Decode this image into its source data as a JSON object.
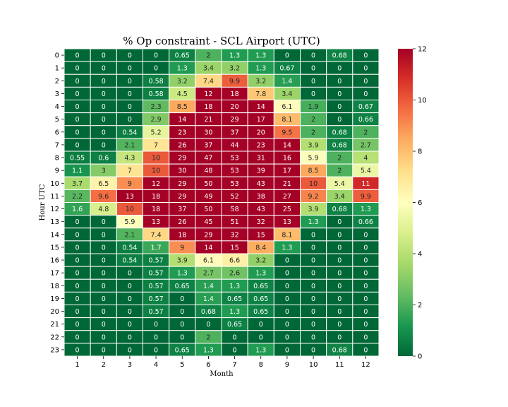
{
  "chart_data": {
    "type": "heatmap",
    "title": "% Op constraint - SCL Airport (UTC)",
    "xlabel": "Month",
    "ylabel": "Hour UTC",
    "x_categories": [
      "1",
      "2",
      "3",
      "4",
      "5",
      "6",
      "7",
      "8",
      "9",
      "10",
      "11",
      "12"
    ],
    "y_categories": [
      "0",
      "1",
      "2",
      "3",
      "4",
      "5",
      "6",
      "7",
      "8",
      "9",
      "10",
      "11",
      "12",
      "13",
      "14",
      "15",
      "16",
      "17",
      "18",
      "19",
      "20",
      "21",
      "22",
      "23"
    ],
    "values": [
      [
        0,
        0,
        0,
        0,
        0.65,
        2,
        1.3,
        1.3,
        0,
        0,
        0.68,
        0
      ],
      [
        0,
        0,
        0,
        0,
        1.3,
        3.4,
        3.2,
        1.3,
        0.67,
        0,
        0,
        0
      ],
      [
        0,
        0,
        0,
        0.58,
        3.2,
        7.4,
        9.9,
        3.2,
        1.4,
        0,
        0,
        0
      ],
      [
        0,
        0,
        0,
        0.58,
        4.5,
        12,
        18,
        7.8,
        3.4,
        0,
        0,
        0
      ],
      [
        0,
        0,
        0,
        2.3,
        8.5,
        18,
        20,
        14,
        6.1,
        1.9,
        0,
        0.67
      ],
      [
        0,
        0,
        0,
        2.9,
        14,
        21,
        29,
        17,
        8.1,
        2,
        0,
        0.66
      ],
      [
        0,
        0,
        0.54,
        5.2,
        23,
        30,
        37,
        20,
        9.5,
        2,
        0.68,
        2
      ],
      [
        0,
        0,
        2.1,
        7,
        26,
        37,
        44,
        23,
        14,
        3.9,
        0.68,
        2.7
      ],
      [
        0.55,
        0.6,
        4.3,
        10,
        29,
        47,
        53,
        31,
        16,
        5.9,
        2,
        4
      ],
      [
        1.1,
        3,
        7,
        10,
        30,
        48,
        53,
        39,
        17,
        8.5,
        2,
        5.4
      ],
      [
        3.7,
        6.5,
        9,
        12,
        29,
        50,
        53,
        43,
        21,
        10,
        5.4,
        11
      ],
      [
        2.2,
        9.6,
        13,
        18,
        29,
        49,
        52,
        38,
        27,
        9.2,
        3.4,
        9.9
      ],
      [
        1.6,
        4.8,
        10,
        18,
        37,
        50,
        58,
        43,
        25,
        3.9,
        0.68,
        1.3
      ],
      [
        0,
        0,
        5.9,
        13,
        26,
        45,
        51,
        32,
        13,
        1.3,
        0,
        0.66
      ],
      [
        0,
        0,
        2.1,
        7.4,
        18,
        29,
        32,
        15,
        8.1,
        0,
        0,
        0
      ],
      [
        0,
        0,
        0.54,
        1.7,
        9,
        14,
        15,
        8.4,
        1.3,
        0,
        0,
        0
      ],
      [
        0,
        0,
        0.54,
        0.57,
        3.9,
        6.1,
        6.6,
        3.2,
        0,
        0,
        0,
        0
      ],
      [
        0,
        0,
        0,
        0.57,
        1.3,
        2.7,
        2.6,
        1.3,
        0,
        0,
        0,
        0
      ],
      [
        0,
        0,
        0,
        0.57,
        0.65,
        1.4,
        1.3,
        0.65,
        0,
        0,
        0,
        0
      ],
      [
        0,
        0,
        0,
        0.57,
        0,
        1.4,
        0.65,
        0.65,
        0,
        0,
        0,
        0
      ],
      [
        0,
        0,
        0,
        0.57,
        0,
        0.68,
        1.3,
        0.65,
        0,
        0,
        0,
        0
      ],
      [
        0,
        0,
        0,
        0,
        0,
        0,
        0.65,
        0,
        0,
        0,
        0,
        0
      ],
      [
        0,
        0,
        0,
        0,
        0,
        2,
        0,
        0,
        0,
        0,
        0,
        0
      ],
      [
        0,
        0,
        0,
        0,
        0.65,
        1.3,
        0,
        1.3,
        0,
        0,
        0.68,
        0
      ]
    ],
    "colormap": "RdYlGn_r",
    "colormap_stops": [
      "#006837",
      "#1a9850",
      "#66bd63",
      "#a6d96a",
      "#d9ef8b",
      "#ffffbf",
      "#fee08b",
      "#fdae61",
      "#f46d43",
      "#d73027",
      "#a50026"
    ],
    "vmin": 0,
    "vmax": 12,
    "colorbar_ticks": [
      "0",
      "2",
      "4",
      "6",
      "8",
      "10",
      "12"
    ],
    "cell_border_color": "#ffffff",
    "grid": false
  }
}
